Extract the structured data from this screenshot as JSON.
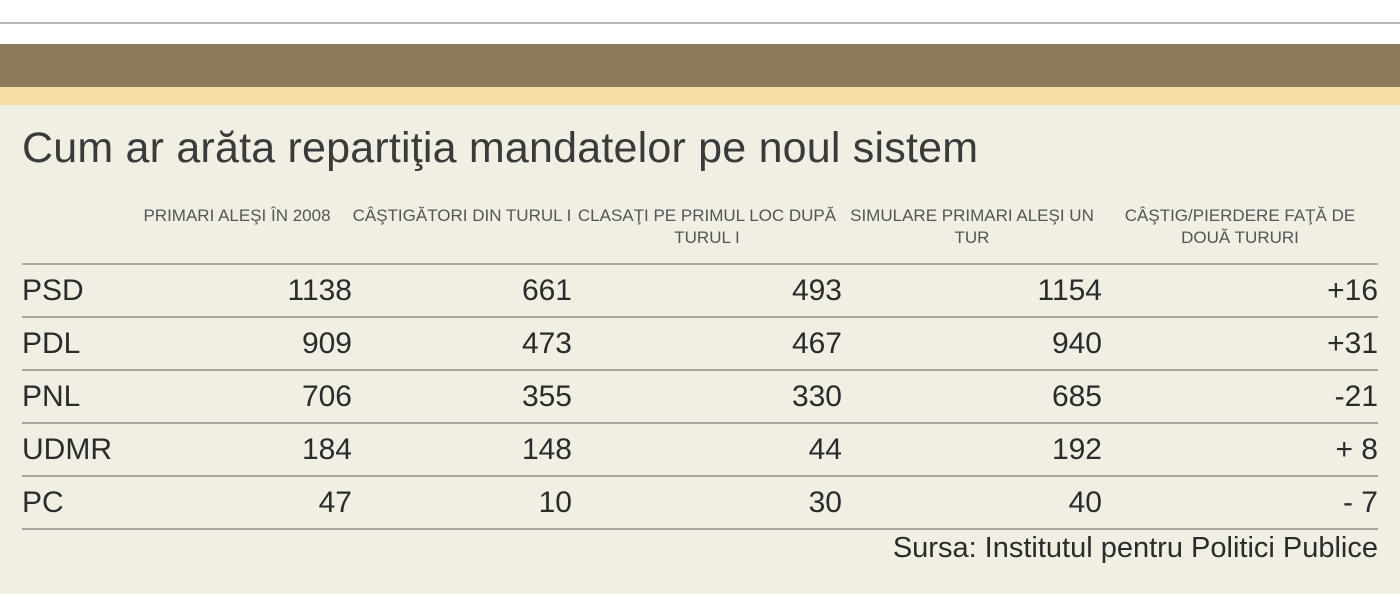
{
  "title": "Cum ar arăta repartiţia mandatelor pe noul sistem",
  "source": "Sursa: Institutul pentru Politici Publice",
  "colors": {
    "band_brown": "#8b7a5b",
    "band_cream": "#f4dea2",
    "background": "#f1eee4"
  },
  "chart_data": {
    "type": "table",
    "title": "Cum ar arăta repartiţia mandatelor pe noul sistem",
    "columns": [
      "",
      "PRIMARI ALEŞI ÎN 2008",
      "CÂŞTIGĂTORI DIN TURUL I",
      "CLASAŢI PE PRIMUL LOC DUPĂ TURUL I",
      "SIMULARE PRIMARI ALEŞI UN TUR",
      "CÂŞTIG/PIERDERE FAŢĂ DE DOUĂ TURURI"
    ],
    "rows": [
      [
        "PSD",
        "1138",
        "661",
        "493",
        "1154",
        "+16"
      ],
      [
        "PDL",
        "909",
        "473",
        "467",
        "940",
        "+31"
      ],
      [
        "PNL",
        "706",
        "355",
        "330",
        "685",
        "-21"
      ],
      [
        "UDMR",
        "184",
        "148",
        "44",
        "192",
        "+ 8"
      ],
      [
        "PC",
        "47",
        "10",
        "30",
        "40",
        "- 7"
      ]
    ]
  }
}
